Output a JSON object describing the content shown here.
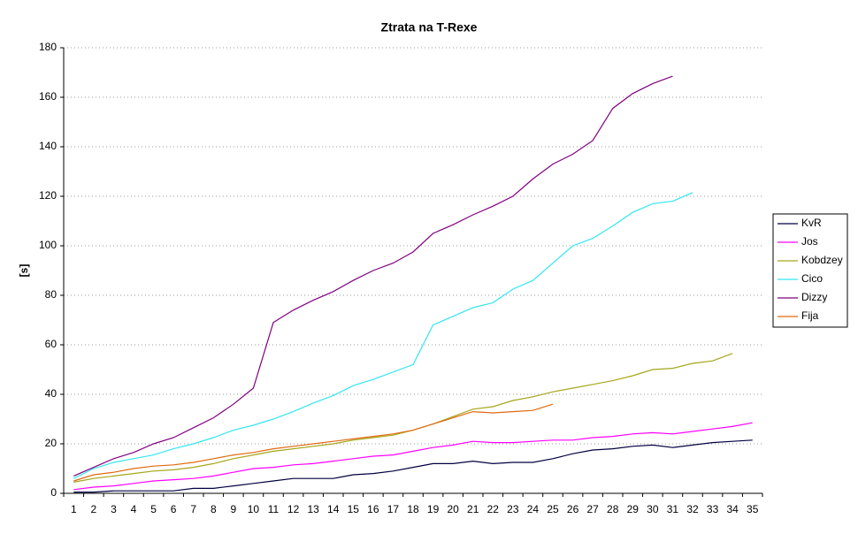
{
  "chart_data": {
    "type": "line",
    "title": "Ztrata na T-Rexe",
    "y_label": "[s]",
    "categories": [
      "1",
      "2",
      "3",
      "4",
      "5",
      "6",
      "7",
      "8",
      "9",
      "10",
      "11",
      "12",
      "13",
      "14",
      "15",
      "16",
      "17",
      "18",
      "19",
      "20",
      "21",
      "22",
      "23",
      "24",
      "25",
      "26",
      "27",
      "28",
      "29",
      "30",
      "31",
      "32",
      "33",
      "34",
      "35"
    ],
    "ylim": [
      0,
      180
    ],
    "yticks": [
      0,
      20,
      40,
      60,
      80,
      100,
      120,
      140,
      160,
      180
    ],
    "grid": true,
    "legend": "right",
    "series": [
      {
        "name": "KvR",
        "color": "#000040",
        "values": [
          0.5,
          0.5,
          1,
          1,
          1,
          1,
          2,
          2,
          3,
          4,
          5,
          6,
          6,
          6,
          7.5,
          8,
          9,
          10.5,
          12,
          12,
          13,
          12,
          12.5,
          12.5,
          14,
          16,
          17.5,
          18,
          19,
          19.5,
          18.5,
          19.5,
          20.5,
          21,
          21.5
        ]
      },
      {
        "name": "Jos",
        "color": "#ff00ff",
        "values": [
          1.5,
          2.5,
          3,
          4,
          5,
          5.5,
          6,
          7,
          8.5,
          10,
          10.5,
          11.5,
          12,
          13,
          14,
          15,
          15.5,
          17,
          18.5,
          19.5,
          21,
          20.5,
          20.5,
          21,
          21.5,
          21.5,
          22.5,
          23,
          24,
          24.5,
          24,
          25,
          26,
          27,
          28.5
        ]
      },
      {
        "name": "Kobdzey",
        "color": "#a6a61a",
        "values": [
          4.5,
          6,
          7,
          8,
          9,
          9.5,
          10.5,
          12,
          14,
          15.5,
          17,
          18,
          19,
          20,
          21.5,
          22.5,
          23.5,
          25.5,
          28,
          31,
          34,
          35,
          37.5,
          39,
          41,
          42.5,
          44,
          45.5,
          47.5,
          50,
          50.5,
          52.5,
          53.5,
          56.5,
          null
        ]
      },
      {
        "name": "Cico",
        "color": "#33e6f0",
        "values": [
          6,
          10,
          12.5,
          14,
          15.5,
          18,
          20,
          22.5,
          25.5,
          27.5,
          30,
          33,
          36.5,
          39.5,
          43.5,
          46,
          49,
          52,
          68,
          71.5,
          75,
          77,
          82.5,
          86,
          93,
          100,
          103,
          108,
          113.5,
          117,
          118,
          121.5,
          null,
          null,
          null
        ]
      },
      {
        "name": "Dizzy",
        "color": "#800080",
        "values": [
          7,
          10.5,
          14,
          16.5,
          20,
          22.5,
          26.5,
          30.5,
          36,
          42.5,
          69,
          74,
          78,
          81.5,
          86,
          90,
          93,
          97.5,
          105,
          108.5,
          112.5,
          116,
          120,
          127,
          133,
          137,
          142.5,
          155.5,
          161.5,
          165.5,
          168.5,
          null,
          null,
          null,
          null
        ]
      },
      {
        "name": "Fija",
        "color": "#e06a10",
        "values": [
          5,
          7.5,
          8.5,
          10,
          11,
          11.5,
          12.5,
          14,
          15.5,
          16.5,
          18,
          19,
          20,
          21,
          22,
          23,
          24,
          25.5,
          28,
          30.5,
          33,
          32.5,
          33,
          33.5,
          36,
          null,
          null,
          null,
          null,
          null,
          null,
          null,
          null,
          null,
          null
        ]
      }
    ]
  }
}
